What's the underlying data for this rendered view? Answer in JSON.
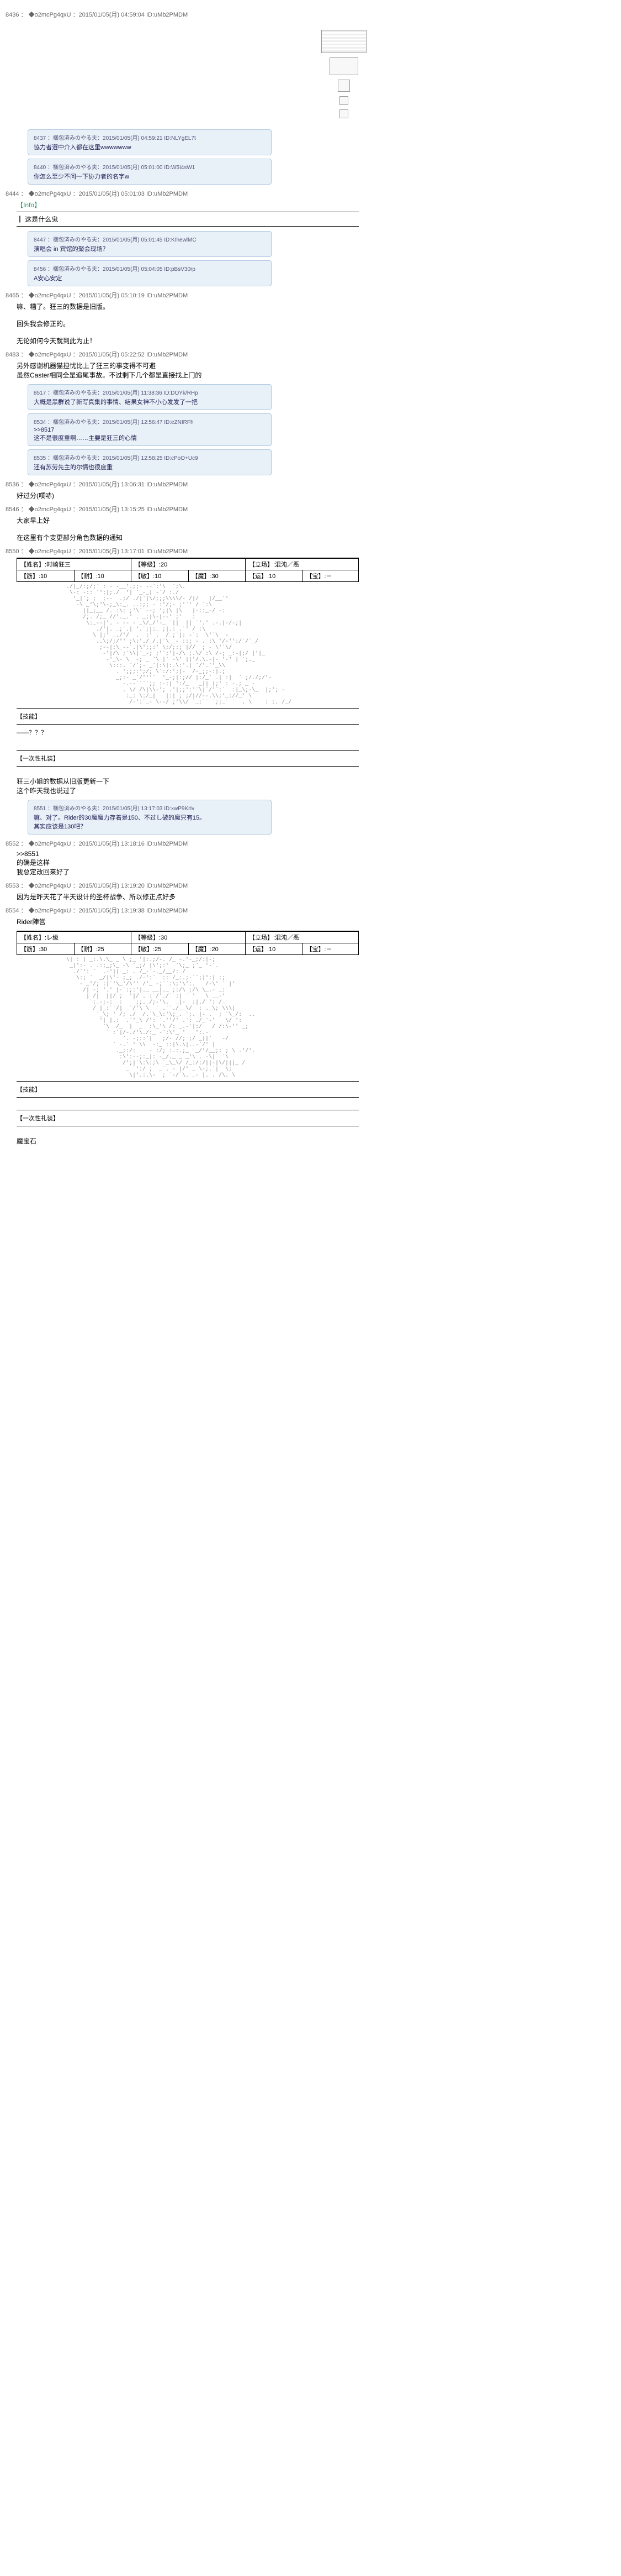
{
  "posts": [
    {
      "id": "p8436",
      "header": "8436 ： ◆o2mcPg4qxU ：2015/01/05(月) 04:59:04 ID:uMb2PMDM",
      "body": "",
      "showBlocks": true,
      "replies": [
        {
          "hdr": "8437 ：梱包済みのやる夫：2015/01/05(月) 04:59:21 ID:NLYgEL7t",
          "body": "協力者選中介入都在这里wwwwwww"
        },
        {
          "hdr": "8440 ：梱包済みのやる夫：2015/01/05(月) 05:01:00 ID:W5I4sW1",
          "body": "你怎么至少不问一下协力者的名字w"
        }
      ]
    },
    {
      "id": "p8444",
      "header": "8444 ： ◆o2mcPg4qxU ：2015/01/05(月) 05:01:03 ID:uMb2PMDM",
      "body": "",
      "info": "【Info】",
      "infoText": "┃ 这是什么鬼",
      "replies": [
        {
          "hdr": "8447 ：梱包済みのやる夫：2015/01/05(月) 05:01:45 ID:KIhewlMC",
          "body": "演唱会 in 宾馆的聚会现场？"
        },
        {
          "hdr": "8456 ：梱包済みのやる夫：2015/01/05(月) 05:04:05 ID:pBsV30rp",
          "body": "A安心安定"
        }
      ]
    },
    {
      "id": "p8465",
      "header": "8465 ： ◆o2mcPg4qxU ：2015/01/05(月) 05:10:19 ID:uMb2PMDM",
      "body": "嘛、糟了。狂三的数据是旧版。\n\n回头我会修正的。\n\n无论如何今天就到此为止！",
      "replies": []
    },
    {
      "id": "p8483",
      "header": "8483 ： ◆o2mcPg4qxU ：2015/01/05(月) 05:22:52 ID:uMb2PMDM",
      "body": "另外感谢机器猫担忧比上了狂三的事变得不可避\n虽然Caster相同全是追尾事故。不过剩下几个都是直接找上门的",
      "replies": [
        {
          "hdr": "8517 ：梱包済みのやる夫：2015/01/05(月) 11:38:36 ID:DOYk/RHp",
          "body": "大概是黑群说了新写真集的事情、结果女神不小心发发了一把"
        },
        {
          "hdr": "8534 ：梱包済みのやる夫：2015/01/05(月) 12:56:47 ID:eZNIRFh",
          "body": ">>8517\n这不是很度重啊……主要是狂三的心情"
        },
        {
          "hdr": "8535 ：梱包済みのやる夫：2015/01/05(月) 12:58:25 ID:cPoO+Uc9",
          "body": "还有苏劳先主的尔情也很度重"
        }
      ]
    },
    {
      "id": "p8536",
      "header": "8536 ： ◆o2mcPg4qxU ：2015/01/05(月) 13:06:31 ID:uMb2PMDM",
      "body": "好过分(噗哧)",
      "replies": []
    },
    {
      "id": "p8546",
      "header": "8546 ： ◆o2mcPg4qxU ：2015/01/05(月) 13:15:25 ID:uMb2PMDM",
      "body": "大家早上好\n\n在这里有个变更部分角色数据的通知",
      "replies": []
    },
    {
      "id": "p8550",
      "header": "8550 ： ◆o2mcPg4qxU ：2015/01/05(月) 13:17:01 ID:uMb2PMDM",
      "body": "",
      "stats": {
        "name": "【姓名】:时崎狂三",
        "level": "【等级】:20",
        "side": "【立场】:混沌／恶",
        "r1": [
          "【筋】:10",
          "【耐】:10",
          "【敏】:10",
          "【魔】:30",
          "【运】:10",
          "【宝】:－"
        ]
      },
      "aa": true,
      "skillLabel": "【技能】",
      "skillText": "――？？？",
      "treasureLabel": "【一次性礼装】",
      "footer": "狂三小姐的数据从旧版更新一下\n这个昨天我也说过了",
      "replies": [
        {
          "hdr": "8551 ：梱包済みのやる夫：2015/01/05(月) 13:17:03 ID:xwP9KrIv",
          "body": "嘛、对了。Rider的30魔魔力存着是150、不过し破的魔只有15。\n其实应该是130吧？"
        }
      ]
    },
    {
      "id": "p8552",
      "header": "8552 ： ◆o2mcPg4qxU ：2015/01/05(月) 13:18:16 ID:uMb2PMDM",
      "body": ">>8551\n的确是这样\n我总定改回来好了",
      "replies": []
    },
    {
      "id": "p8553",
      "header": "8553 ： ◆o2mcPg4qxU ：2015/01/05(月) 13:19:20 ID:uMb2PMDM",
      "body": "因为是昨天花了半天设计的圣杯战争、所以修正点好多",
      "replies": []
    },
    {
      "id": "p8554",
      "header": "8554 ： ◆o2mcPg4qxU ：2015/01/05(月) 13:19:38 ID:uMb2PMDM",
      "body": "Rider陣営\n",
      "stats": {
        "name": "【姓名】:レ级",
        "level": "【等级】:30",
        "side": "【立场】:混沌／恶",
        "r1": [
          "【筋】:30",
          "【耐】:25",
          "【敏】:25",
          "【魔】:20",
          "【运】:10",
          "【宝】:－"
        ]
      },
      "aa": true,
      "skillLabel": "【技能】",
      "treasureLabel": "【一次性礼装】",
      "footer2": "魔宝石",
      "replies": []
    }
  ],
  "hrWidth": 620
}
